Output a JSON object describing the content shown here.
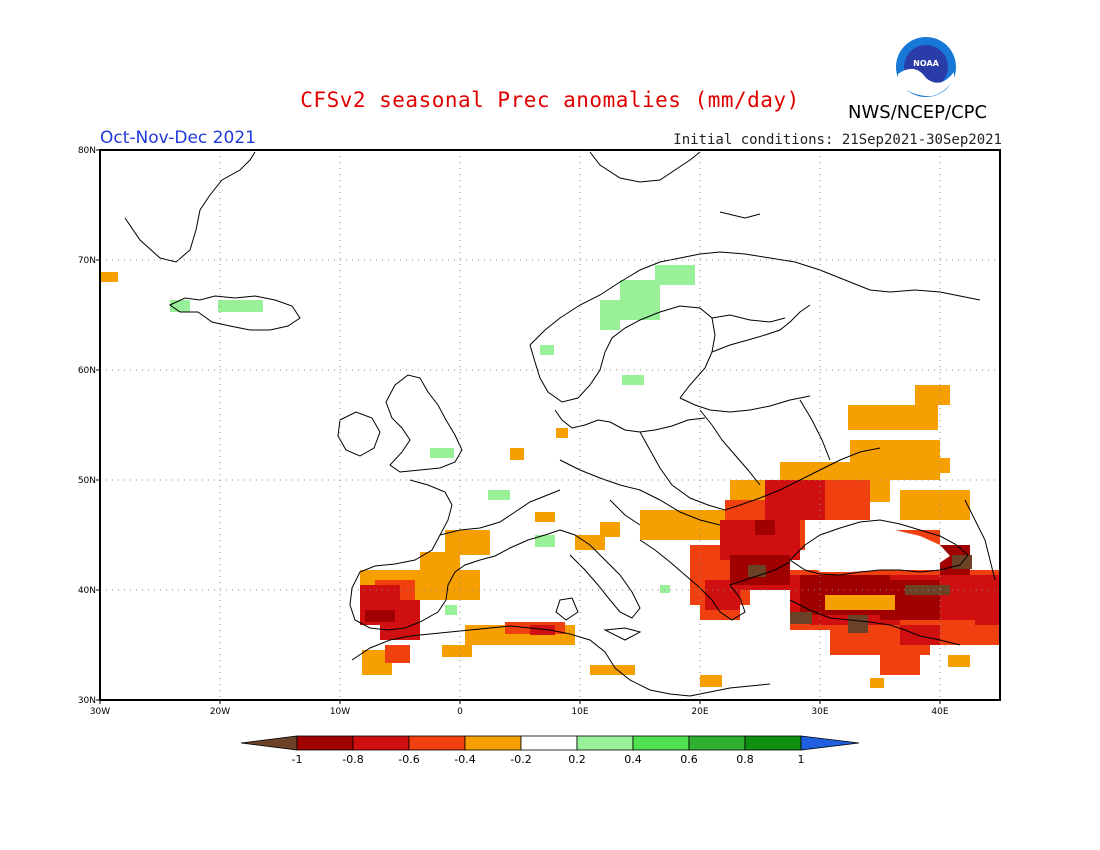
{
  "header": {
    "title": "CFSv2 seasonal Prec anomalies (mm/day)",
    "org": "NWS/NCEP/CPC",
    "period": "Oct-Nov-Dec 2021",
    "initial_conditions": "Initial conditions: 21Sep2021-30Sep2021"
  },
  "map": {
    "projection": "latlon",
    "lon_range": [
      -30,
      45
    ],
    "lat_range": [
      30,
      80
    ],
    "lat_ticks": [
      "30N",
      "40N",
      "50N",
      "60N",
      "70N",
      "80N"
    ],
    "lon_ticks": [
      "30W",
      "20W",
      "10W",
      "0",
      "10E",
      "20E",
      "30E",
      "40E"
    ]
  },
  "legend": {
    "labels": [
      "-1",
      "-0.8",
      "-0.6",
      "-0.4",
      "-0.2",
      "0.2",
      "0.4",
      "0.6",
      "0.8",
      "1"
    ],
    "colors": [
      "#6b4226",
      "#a00000",
      "#d01010",
      "#f04010",
      "#f5a000",
      "#ffffff",
      "#98f098",
      "#50e050",
      "#30b030",
      "#109010",
      "#2060e0"
    ]
  },
  "anomaly_colors": {
    "brown": "#6b4226",
    "darkred": "#a00000",
    "red": "#d01010",
    "redorange": "#f04010",
    "orange": "#f5a000",
    "lightgreen": "#98f098"
  }
}
